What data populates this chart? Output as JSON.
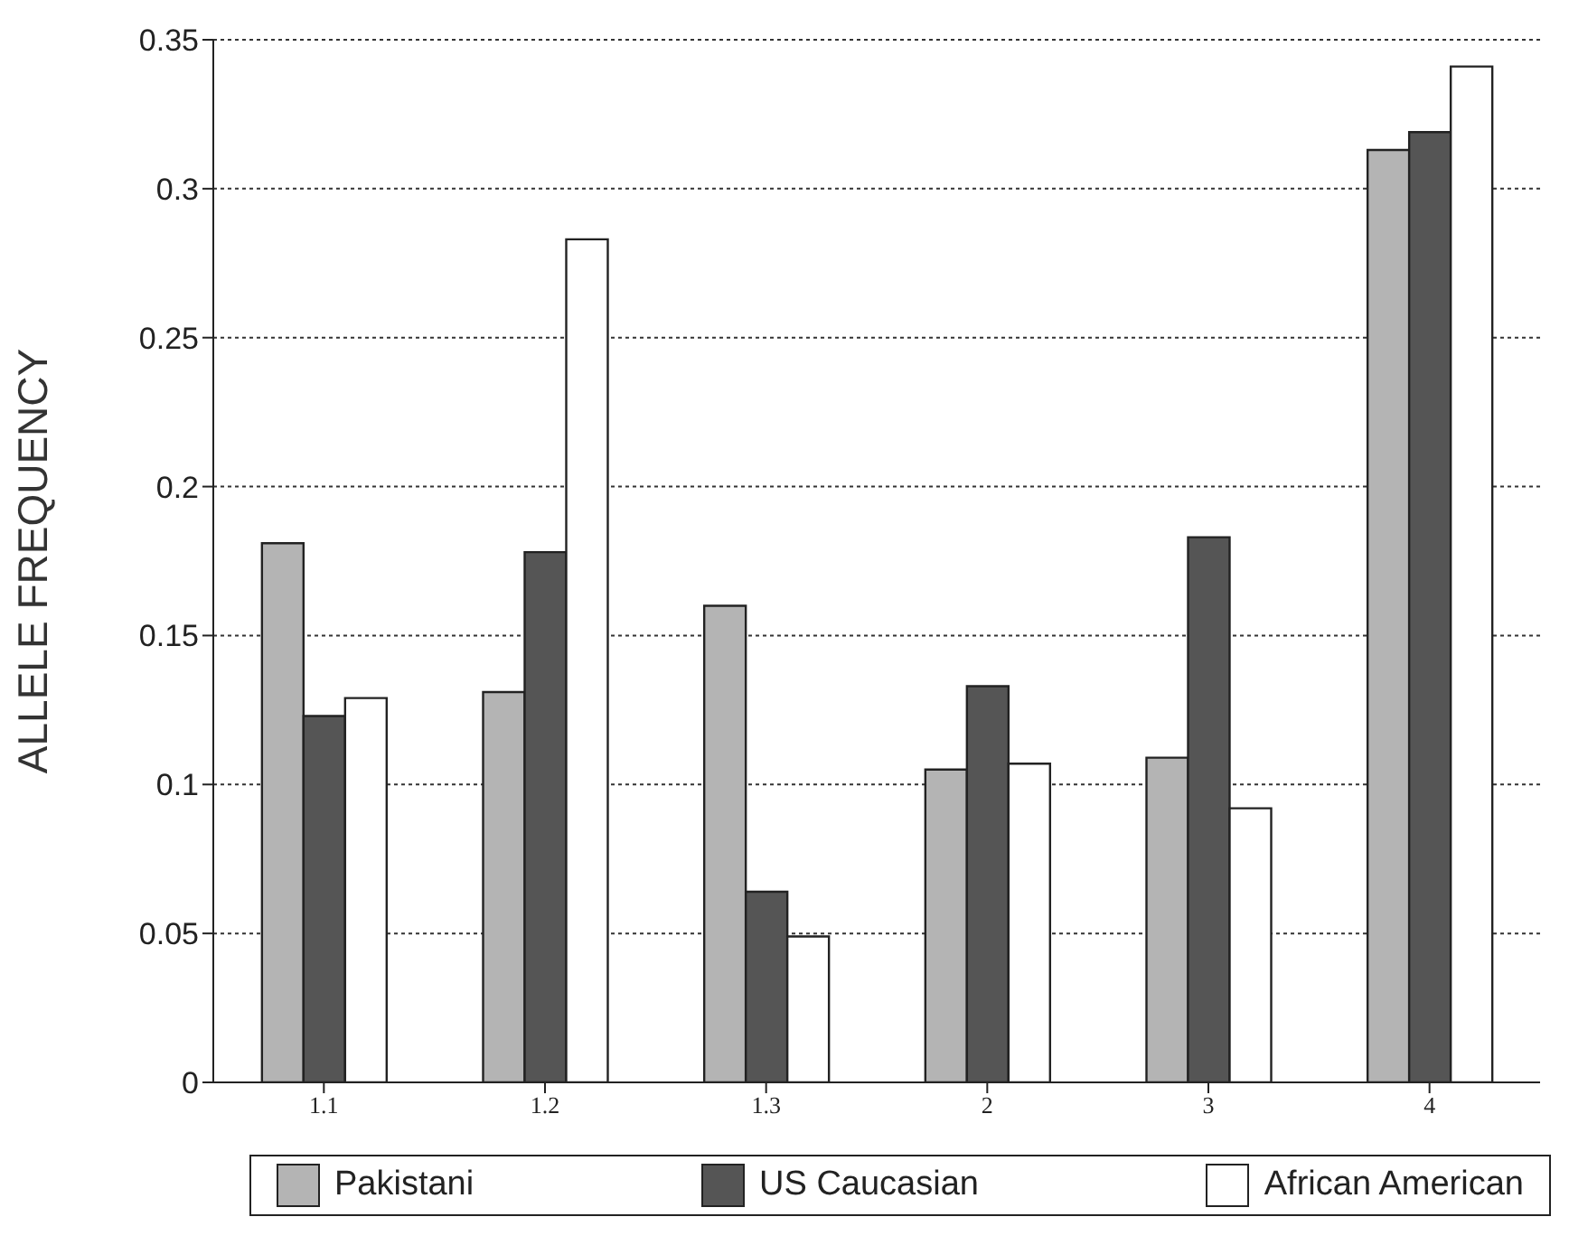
{
  "chart_data": {
    "type": "bar",
    "ylabel": "ALLELE FREQUENCY",
    "categories": [
      "1.1",
      "1.2",
      "1.3",
      "2",
      "3",
      "4"
    ],
    "series": [
      {
        "name": "Pakistani",
        "color": "#b4b4b4",
        "values": [
          0.181,
          0.131,
          0.16,
          0.105,
          0.109,
          0.313
        ]
      },
      {
        "name": "US Caucasian",
        "color": "#555555",
        "values": [
          0.123,
          0.178,
          0.064,
          0.133,
          0.183,
          0.319
        ]
      },
      {
        "name": "African American",
        "color": "#ffffff",
        "values": [
          0.129,
          0.283,
          0.049,
          0.107,
          0.092,
          0.341
        ]
      }
    ],
    "ylim": [
      0,
      0.35
    ],
    "yticks": [
      0,
      0.05,
      0.1,
      0.15,
      0.2,
      0.25,
      0.3,
      0.35
    ],
    "grid": "y",
    "legend": "bottom"
  }
}
